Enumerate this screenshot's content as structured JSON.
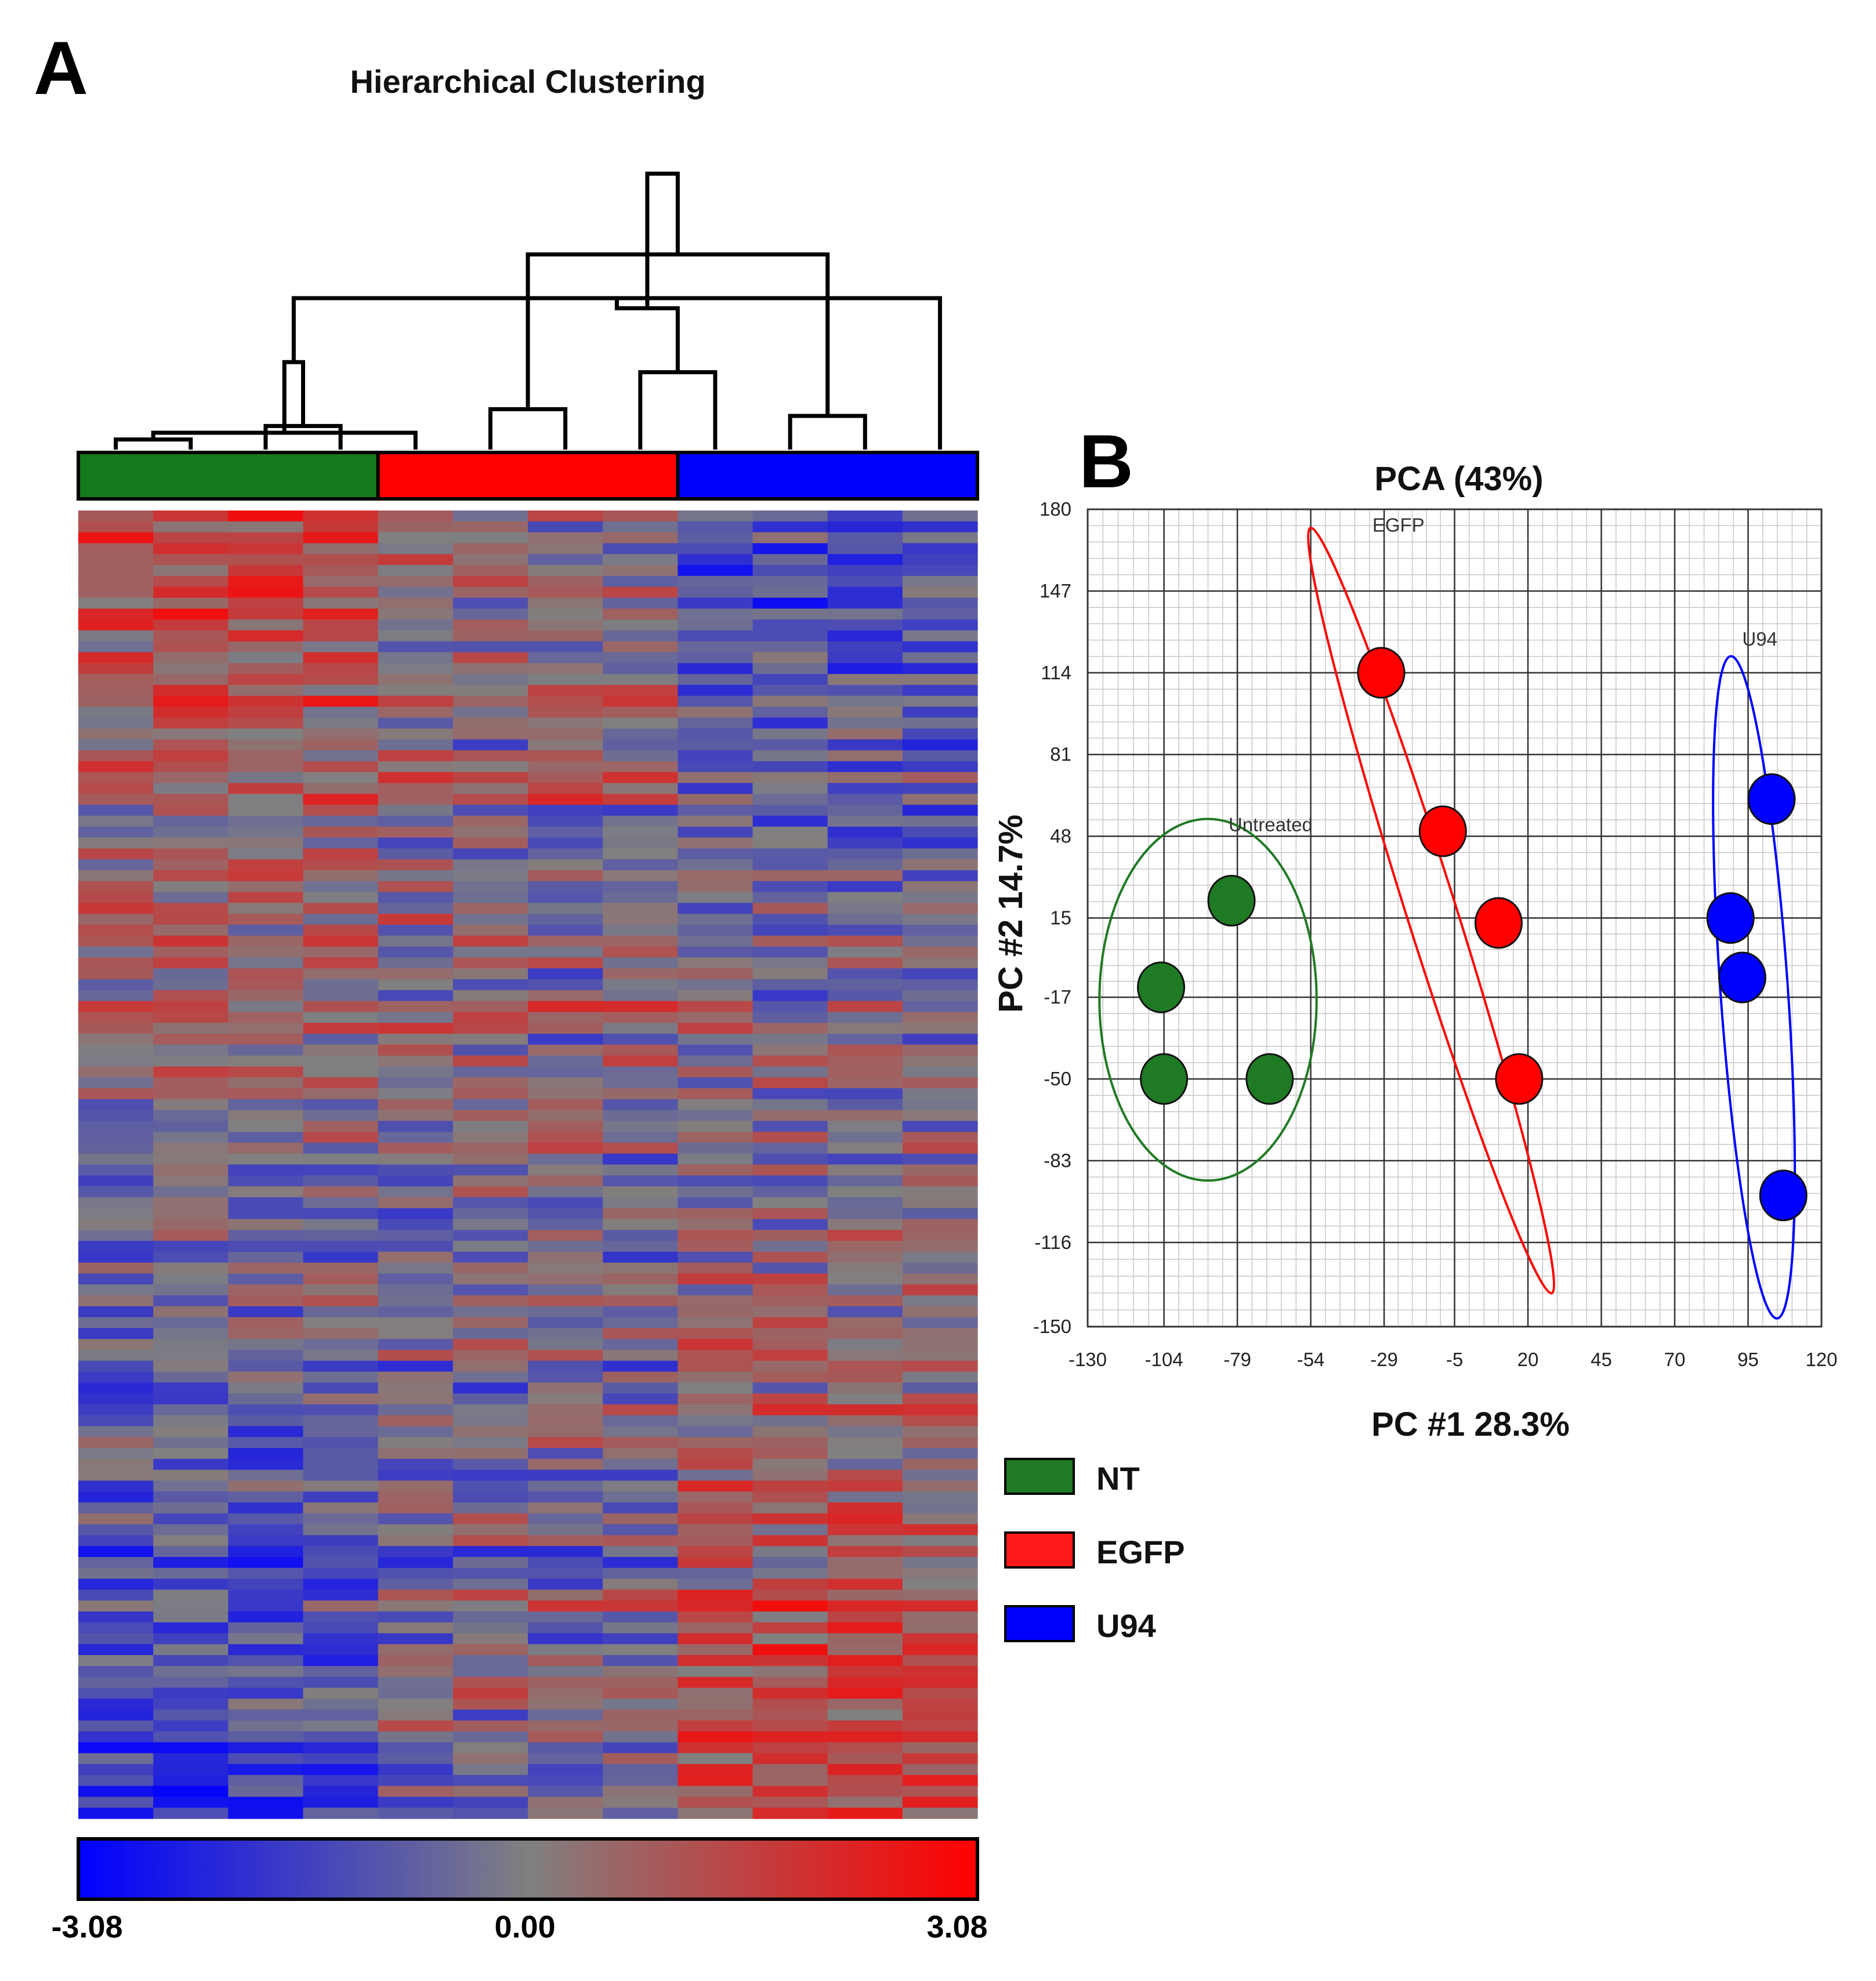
{
  "figure": {
    "panel_a_label": "A",
    "panel_b_label": "B"
  },
  "chart_data": [
    {
      "type": "heatmap",
      "title": "Hierarchical Clustering",
      "groups": [
        {
          "name": "NT",
          "color": "#157a1e",
          "count": 4
        },
        {
          "name": "EGFP",
          "color": "#ff0000",
          "count": 4
        },
        {
          "name": "U94",
          "color": "#0000ff",
          "count": 4
        }
      ],
      "n_columns": 12,
      "n_rows": 120,
      "dendrogram_merges": [
        [
          1,
          2
        ],
        [
          3,
          4
        ],
        [
          5,
          13
        ],
        [
          6,
          7
        ],
        [
          8,
          9
        ],
        [
          14,
          15
        ],
        [
          10,
          11
        ],
        [
          12,
          18
        ],
        [
          16,
          19
        ],
        [
          17,
          20
        ],
        [
          21,
          22
        ]
      ],
      "dendrogram_heights": [
        0.03,
        0.07,
        0.05,
        0.12,
        0.23,
        0.26,
        0.1,
        0.45,
        0.58,
        0.42,
        0.82
      ],
      "colorbar": {
        "min": -3.08,
        "mid": 0.0,
        "max": 3.08,
        "min_label": "-3.08",
        "mid_label": "0.00",
        "max_label": "3.08",
        "low_color": "#0000ff",
        "mid_color": "#808080",
        "high_color": "#ff0000"
      }
    },
    {
      "type": "scatter",
      "title": "PCA (43%)",
      "xlabel": "PC #1 28.3%",
      "ylabel": "PC #2 14.7%",
      "xlim": [
        -130,
        120
      ],
      "ylim": [
        -150,
        180
      ],
      "xticks": [
        -130,
        -104,
        -79,
        -54,
        -29,
        -5,
        20,
        45,
        70,
        95,
        120
      ],
      "yticks": [
        -150,
        -116,
        -83,
        -50,
        -17,
        15,
        48,
        81,
        114,
        147,
        180
      ],
      "grid": true,
      "series": [
        {
          "name": "NT",
          "ellipse_label": "Untreated",
          "color": "#1f7a24",
          "points": [
            [
              -81,
              22
            ],
            [
              -105,
              -13
            ],
            [
              -104,
              -50
            ],
            [
              -68,
              -50
            ]
          ],
          "ellipse": {
            "cx": -89,
            "cy": -18,
            "rx": 37,
            "ry": 73,
            "angle": 0
          },
          "label_at": [
            -82,
            50
          ]
        },
        {
          "name": "EGFP",
          "ellipse_label": "EGFP",
          "color": "#ff0000",
          "points": [
            [
              -30,
              114
            ],
            [
              -9,
              50
            ],
            [
              10,
              13
            ],
            [
              17,
              -50
            ]
          ],
          "ellipse": {
            "cx": -13,
            "cy": 18,
            "rx": 8.5,
            "ry": 162,
            "angle": -17.5
          },
          "label_at": [
            -33,
            171
          ]
        },
        {
          "name": "U94",
          "ellipse_label": "U94",
          "color": "#0000ff",
          "points": [
            [
              103,
              63
            ],
            [
              89,
              15
            ],
            [
              93,
              -9
            ],
            [
              107,
              -97
            ]
          ],
          "ellipse": {
            "cx": 97,
            "cy": -13,
            "rx": 11.5,
            "ry": 134,
            "angle": -4
          },
          "label_at": [
            93,
            125
          ]
        }
      ]
    }
  ],
  "legend": [
    {
      "label": "NT",
      "color": "#1f7a24"
    },
    {
      "label": "EGFP",
      "color": "#ff1a1a"
    },
    {
      "label": "U94",
      "color": "#0000ff"
    }
  ]
}
